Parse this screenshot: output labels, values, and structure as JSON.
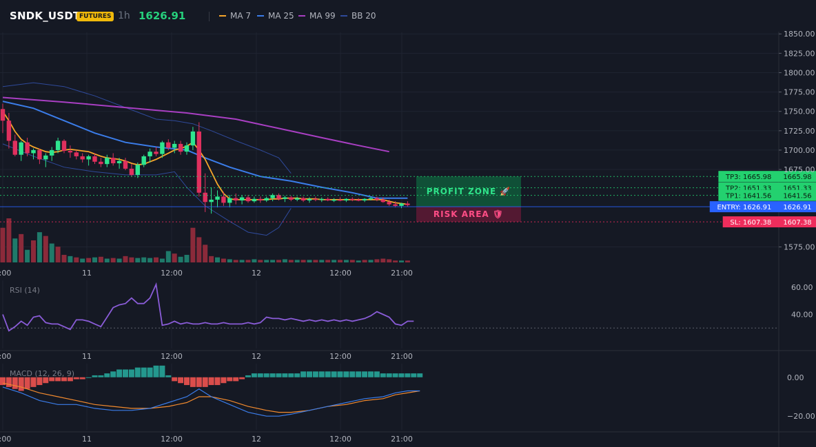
{
  "header": {
    "symbol": "SNDK_USDT",
    "badge": "FUTURES",
    "timeframe": "1h",
    "price": "1626.91"
  },
  "legend": [
    {
      "label": "MA 7",
      "color": "#f7a62b"
    },
    {
      "label": "MA 25",
      "color": "#3b7dea"
    },
    {
      "label": "MA 99",
      "color": "#a93fc3"
    },
    {
      "label": "BB 20",
      "color": "#2f4a9b"
    }
  ],
  "colors": {
    "up": "#2ee58f",
    "down": "#e0305e",
    "vol_up": "#1f7a6a",
    "vol_down": "#8b2a3a",
    "grid": "#1f2431",
    "bg": "#151924"
  },
  "zones": {
    "profit_label": "PROFIT ZONE",
    "risk_label": "RISK AREA"
  },
  "chart_data": [
    {
      "type": "candlestick",
      "title": "SNDK_USDT",
      "ylim": [
        1555,
        1852
      ],
      "y_ticks": [
        "1850.00",
        "1825.00",
        "1800.00",
        "1775.00",
        "1750.00",
        "1725.00",
        "1700.00",
        "1675.00",
        "1575.00"
      ],
      "x_ticks": [
        "2:00",
        "11",
        "12:00",
        "12",
        "12:00",
        "21:00"
      ],
      "candles": [
        [
          1753,
          1760,
          1722,
          1738
        ],
        [
          1738,
          1748,
          1702,
          1712
        ],
        [
          1712,
          1720,
          1692,
          1694
        ],
        [
          1694,
          1712,
          1686,
          1710
        ],
        [
          1710,
          1716,
          1692,
          1696
        ],
        [
          1696,
          1702,
          1688,
          1700
        ],
        [
          1700,
          1702,
          1682,
          1688
        ],
        [
          1688,
          1696,
          1678,
          1693
        ],
        [
          1693,
          1704,
          1686,
          1700
        ],
        [
          1700,
          1716,
          1696,
          1712
        ],
        [
          1712,
          1714,
          1696,
          1699
        ],
        [
          1699,
          1706,
          1690,
          1697
        ],
        [
          1697,
          1700,
          1688,
          1692
        ],
        [
          1692,
          1696,
          1684,
          1688
        ],
        [
          1688,
          1694,
          1680,
          1692
        ],
        [
          1692,
          1696,
          1682,
          1685
        ],
        [
          1685,
          1690,
          1678,
          1682
        ],
        [
          1682,
          1694,
          1678,
          1690
        ],
        [
          1690,
          1696,
          1680,
          1683
        ],
        [
          1683,
          1690,
          1676,
          1686
        ],
        [
          1686,
          1690,
          1674,
          1676
        ],
        [
          1676,
          1682,
          1666,
          1668
        ],
        [
          1668,
          1684,
          1664,
          1681
        ],
        [
          1681,
          1694,
          1678,
          1692
        ],
        [
          1692,
          1702,
          1684,
          1698
        ],
        [
          1698,
          1704,
          1692,
          1695
        ],
        [
          1695,
          1712,
          1690,
          1710
        ],
        [
          1710,
          1714,
          1700,
          1703
        ],
        [
          1703,
          1712,
          1696,
          1708
        ],
        [
          1708,
          1712,
          1694,
          1698
        ],
        [
          1698,
          1710,
          1694,
          1706
        ],
        [
          1706,
          1730,
          1700,
          1724
        ],
        [
          1724,
          1736,
          1640,
          1645
        ],
        [
          1645,
          1670,
          1620,
          1633
        ],
        [
          1633,
          1652,
          1618,
          1636
        ],
        [
          1636,
          1648,
          1626,
          1640
        ],
        [
          1640,
          1646,
          1628,
          1632
        ],
        [
          1632,
          1642,
          1626,
          1638
        ],
        [
          1638,
          1644,
          1630,
          1635
        ],
        [
          1635,
          1642,
          1630,
          1639
        ],
        [
          1639,
          1642,
          1632,
          1634
        ],
        [
          1634,
          1640,
          1632,
          1637
        ],
        [
          1637,
          1640,
          1632,
          1635
        ],
        [
          1635,
          1640,
          1633,
          1638
        ],
        [
          1638,
          1644,
          1634,
          1642
        ],
        [
          1642,
          1644,
          1635,
          1637
        ],
        [
          1637,
          1641,
          1633,
          1639
        ],
        [
          1639,
          1641,
          1634,
          1636
        ],
        [
          1636,
          1640,
          1634,
          1638
        ],
        [
          1638,
          1640,
          1633,
          1635
        ],
        [
          1635,
          1639,
          1632,
          1637
        ],
        [
          1637,
          1640,
          1634,
          1636
        ],
        [
          1636,
          1639,
          1633,
          1637
        ],
        [
          1637,
          1639,
          1634,
          1635
        ],
        [
          1635,
          1638,
          1633,
          1636
        ],
        [
          1636,
          1639,
          1634,
          1635
        ],
        [
          1635,
          1638,
          1633,
          1637
        ],
        [
          1637,
          1639,
          1634,
          1636
        ],
        [
          1636,
          1638,
          1634,
          1635
        ],
        [
          1635,
          1638,
          1633,
          1637
        ],
        [
          1637,
          1640,
          1635,
          1638
        ],
        [
          1638,
          1640,
          1634,
          1636
        ],
        [
          1636,
          1639,
          1632,
          1633
        ],
        [
          1633,
          1636,
          1628,
          1630
        ],
        [
          1630,
          1634,
          1626,
          1628
        ],
        [
          1628,
          1632,
          1625,
          1631
        ],
        [
          1631,
          1634,
          1627,
          1629
        ]
      ],
      "ma7": [
        1750,
        1738,
        1724,
        1714,
        1708,
        1704,
        1701,
        1698,
        1697,
        1698,
        1700,
        1701,
        1700,
        1699,
        1698,
        1695,
        1692,
        1690,
        1689,
        1688,
        1686,
        1683,
        1681,
        1682,
        1685,
        1688,
        1692,
        1696,
        1700,
        1702,
        1705,
        1710,
        1700,
        1688,
        1672,
        1656,
        1644,
        1637,
        1636,
        1636,
        1636,
        1636,
        1636,
        1636,
        1637,
        1637,
        1638,
        1638,
        1638,
        1637,
        1637,
        1637,
        1636,
        1636,
        1636,
        1636,
        1636,
        1636,
        1636,
        1636,
        1636,
        1636,
        1636,
        1634,
        1632,
        1631,
        1630
      ],
      "ma25": [
        [
          0,
          1763
        ],
        [
          5,
          1754
        ],
        [
          10,
          1738
        ],
        [
          15,
          1722
        ],
        [
          20,
          1710
        ],
        [
          25,
          1704
        ],
        [
          30,
          1700
        ],
        [
          33,
          1690
        ],
        [
          37,
          1678
        ],
        [
          42,
          1666
        ],
        [
          47,
          1660
        ],
        [
          52,
          1652
        ],
        [
          57,
          1645
        ],
        [
          61,
          1638
        ],
        [
          66,
          1638
        ]
      ],
      "ma99": [
        [
          0,
          1768
        ],
        [
          10,
          1762
        ],
        [
          20,
          1755
        ],
        [
          30,
          1748
        ],
        [
          38,
          1740
        ],
        [
          45,
          1728
        ],
        [
          52,
          1716
        ],
        [
          58,
          1706
        ],
        [
          63,
          1698
        ]
      ],
      "bb_upper": [
        [
          0,
          1782
        ],
        [
          5,
          1787
        ],
        [
          10,
          1782
        ],
        [
          15,
          1770
        ],
        [
          20,
          1755
        ],
        [
          25,
          1740
        ],
        [
          28,
          1738
        ],
        [
          31,
          1734
        ],
        [
          34,
          1725
        ],
        [
          38,
          1712
        ],
        [
          42,
          1700
        ],
        [
          45,
          1690
        ],
        [
          47,
          1670
        ]
      ],
      "bb_lower": [
        [
          0,
          1708
        ],
        [
          5,
          1692
        ],
        [
          10,
          1678
        ],
        [
          15,
          1672
        ],
        [
          20,
          1668
        ],
        [
          25,
          1668
        ],
        [
          28,
          1672
        ],
        [
          30,
          1652
        ],
        [
          33,
          1628
        ],
        [
          37,
          1608
        ],
        [
          40,
          1594
        ],
        [
          43,
          1590
        ],
        [
          45,
          1600
        ],
        [
          47,
          1625
        ]
      ],
      "volume": [
        55,
        70,
        38,
        45,
        20,
        35,
        48,
        42,
        30,
        25,
        12,
        10,
        8,
        6,
        7,
        8,
        9,
        6,
        7,
        6,
        10,
        8,
        7,
        8,
        7,
        8,
        6,
        18,
        14,
        9,
        12,
        55,
        40,
        28,
        10,
        8,
        6,
        5,
        4,
        4,
        4,
        5,
        4,
        4,
        4,
        4,
        5,
        4,
        4,
        4,
        4,
        4,
        4,
        4,
        4,
        4,
        4,
        4,
        3,
        4,
        4,
        5,
        6,
        5,
        3,
        3,
        3
      ],
      "volume_dir": [
        0,
        0,
        1,
        0,
        1,
        0,
        1,
        0,
        1,
        0,
        0,
        1,
        0,
        1,
        0,
        1,
        0,
        1,
        0,
        1,
        0,
        0,
        1,
        1,
        1,
        0,
        1,
        1,
        0,
        1,
        1,
        0,
        0,
        0,
        0,
        1,
        0,
        1,
        0,
        1,
        0,
        1,
        0,
        1,
        1,
        0,
        1,
        0,
        1,
        0,
        1,
        0,
        1,
        0,
        1,
        0,
        1,
        0,
        1,
        0,
        1,
        0,
        0,
        0,
        0,
        1,
        0
      ],
      "levels": [
        {
          "label": "TP3: 1665.98",
          "axis": "1665.98",
          "value": 1665.98,
          "color": "#23d16f"
        },
        {
          "label": "TP2: 1651.33",
          "axis": "1651.33",
          "value": 1651.33,
          "color": "#23d16f"
        },
        {
          "label": "TP1: 1641.56",
          "axis": "1641.56",
          "value": 1641.56,
          "color": "#23d16f"
        },
        {
          "label": "ENTRY: 1626.91",
          "axis": "1626.91",
          "value": 1626.91,
          "color": "#2962ff"
        },
        {
          "label": "SL: 1607.38",
          "axis": "1607.38",
          "value": 1607.38,
          "color": "#ee2d5c"
        }
      ]
    },
    {
      "type": "line",
      "title": "RSI (14)",
      "ylim": [
        15,
        65
      ],
      "y_ticks": [
        "60.00",
        "40.00"
      ],
      "reference": 30,
      "x_ticks": [
        "2:00",
        "11",
        "12:00",
        "12",
        "12:00",
        "21:00"
      ],
      "values": [
        40,
        28,
        31,
        35,
        32,
        38,
        39,
        34,
        33,
        33,
        31,
        29,
        36,
        36,
        35,
        33,
        31,
        38,
        45,
        47,
        48,
        52,
        48,
        48,
        52,
        62,
        32,
        33,
        35,
        33,
        34,
        33,
        33,
        34,
        33,
        33,
        34,
        33,
        33,
        33,
        34,
        33,
        34,
        38,
        37,
        37,
        36,
        37,
        36,
        35,
        36,
        35,
        36,
        35,
        36,
        35,
        36,
        35,
        36,
        37,
        39,
        42,
        40,
        38,
        33,
        32,
        35,
        35
      ]
    },
    {
      "type": "line",
      "title": "MACD (12, 26, 9)",
      "ylim": [
        -27,
        7
      ],
      "y_ticks": [
        "0.00",
        "−20.00"
      ],
      "x_ticks": [
        "2:00",
        "11",
        "12:00",
        "12",
        "12:00",
        "21:00"
      ],
      "macd": [
        [
          0,
          -5
        ],
        [
          3,
          -8
        ],
        [
          6,
          -12
        ],
        [
          9,
          -14
        ],
        [
          12,
          -14
        ],
        [
          15,
          -16
        ],
        [
          18,
          -17
        ],
        [
          21,
          -17
        ],
        [
          24,
          -16
        ],
        [
          27,
          -13
        ],
        [
          30,
          -10
        ],
        [
          32,
          -6
        ],
        [
          34,
          -10
        ],
        [
          37,
          -14
        ],
        [
          40,
          -18
        ],
        [
          43,
          -20
        ],
        [
          45,
          -20
        ],
        [
          47,
          -19
        ],
        [
          50,
          -17
        ],
        [
          53,
          -15
        ],
        [
          56,
          -13
        ],
        [
          59,
          -11
        ],
        [
          62,
          -10
        ],
        [
          64,
          -8
        ],
        [
          66,
          -7
        ],
        [
          68,
          -7
        ]
      ],
      "signal": [
        [
          0,
          -3
        ],
        [
          3,
          -5
        ],
        [
          6,
          -8
        ],
        [
          9,
          -10
        ],
        [
          12,
          -12
        ],
        [
          15,
          -14
        ],
        [
          18,
          -15
        ],
        [
          21,
          -16
        ],
        [
          24,
          -16
        ],
        [
          27,
          -15
        ],
        [
          30,
          -13
        ],
        [
          32,
          -10
        ],
        [
          34,
          -10
        ],
        [
          37,
          -12
        ],
        [
          40,
          -15
        ],
        [
          43,
          -17
        ],
        [
          45,
          -18
        ],
        [
          47,
          -18
        ],
        [
          50,
          -17
        ],
        [
          53,
          -15
        ],
        [
          56,
          -14
        ],
        [
          59,
          -12
        ],
        [
          62,
          -11
        ],
        [
          64,
          -9
        ],
        [
          66,
          -8
        ],
        [
          68,
          -7
        ]
      ],
      "histogram": [
        -4,
        -5,
        -6,
        -7,
        -6,
        -5,
        -4,
        -3,
        -2,
        -2,
        -2,
        -2,
        -1,
        -1,
        0,
        1,
        1,
        2,
        3,
        4,
        4,
        4,
        5,
        5,
        5,
        6,
        6,
        1,
        -2,
        -3,
        -4,
        -5,
        -5,
        -5,
        -4,
        -4,
        -3,
        -2,
        -2,
        -1,
        1,
        2,
        2,
        2,
        2,
        2,
        2,
        2,
        2,
        3,
        3,
        3,
        3,
        3,
        3,
        3,
        3,
        3,
        3,
        3,
        3,
        3,
        2,
        2,
        2,
        2,
        2,
        2,
        2
      ]
    }
  ]
}
